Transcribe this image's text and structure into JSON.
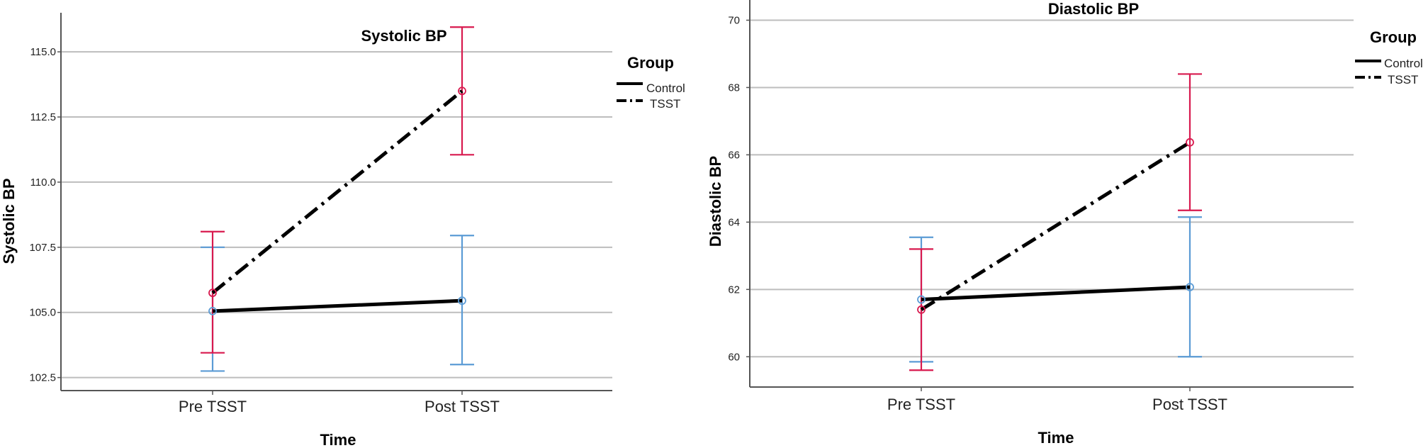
{
  "chart_data": [
    {
      "type": "line",
      "title": "Systolic BP",
      "xlabel": "Time",
      "ylabel": "Systolic BP",
      "categories": [
        "Pre TSST",
        "Post TSST"
      ],
      "ylim": [
        102.0,
        116.5
      ],
      "yticks": [
        "102.5",
        "105.0",
        "107.5",
        "110.0",
        "112.5",
        "115.0"
      ],
      "grid": true,
      "legend": {
        "title": "Group",
        "position": "top-right"
      },
      "series": [
        {
          "name": "Control",
          "style": "solid",
          "error_color": "#5b9bd5",
          "values": [
            105.05,
            105.45
          ],
          "lower": [
            102.75,
            103.0
          ],
          "upper": [
            107.5,
            107.95
          ]
        },
        {
          "name": "TSST",
          "style": "dashdot",
          "error_color": "#d8194e",
          "values": [
            105.75,
            113.5
          ],
          "lower": [
            103.45,
            111.05
          ],
          "upper": [
            108.1,
            115.95
          ]
        }
      ]
    },
    {
      "type": "line",
      "title": "Diastolic BP",
      "xlabel": "Time",
      "ylabel": "Diastolic BP",
      "categories": [
        "Pre TSST",
        "Post TSST"
      ],
      "ylim": [
        59.1,
        70.6
      ],
      "yticks": [
        "60",
        "62",
        "64",
        "66",
        "68",
        "70"
      ],
      "grid": true,
      "legend": {
        "title": "Group",
        "position": "top-right"
      },
      "series": [
        {
          "name": "Control",
          "style": "solid",
          "error_color": "#5b9bd5",
          "values": [
            61.7,
            62.07
          ],
          "lower": [
            59.85,
            60.0
          ],
          "upper": [
            63.55,
            64.15
          ]
        },
        {
          "name": "TSST",
          "style": "dashdot",
          "error_color": "#d8194e",
          "values": [
            61.4,
            66.37
          ],
          "lower": [
            59.6,
            64.35
          ],
          "upper": [
            63.2,
            68.4
          ]
        }
      ]
    }
  ]
}
